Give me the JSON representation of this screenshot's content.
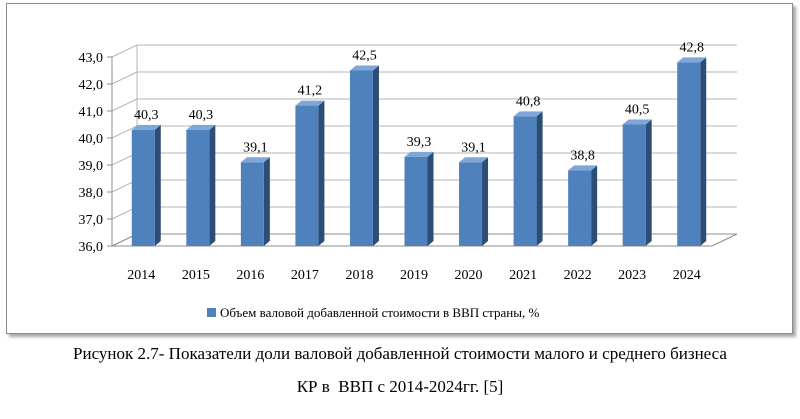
{
  "chart_data": {
    "type": "bar",
    "categories": [
      "2014",
      "2015",
      "2016",
      "2017",
      "2018",
      "2019",
      "2020",
      "2021",
      "2022",
      "2023",
      "2024"
    ],
    "series": [
      {
        "name": "Объем валовой добавленной стоимости в ВВП страны, %",
        "values": [
          40.3,
          40.3,
          39.1,
          41.2,
          42.5,
          39.3,
          39.1,
          40.8,
          38.8,
          40.5,
          42.8
        ],
        "labels": [
          "40,3",
          "40,3",
          "39,1",
          "41,2",
          "42,5",
          "39,3",
          "39,1",
          "40,8",
          "38,8",
          "40,5",
          "42,8"
        ]
      }
    ],
    "ylim": [
      36.0,
      43.0
    ],
    "yticks": [
      36.0,
      37.0,
      38.0,
      39.0,
      40.0,
      41.0,
      42.0,
      43.0
    ],
    "ytick_labels": [
      "36,0",
      "37,0",
      "38,0",
      "39,0",
      "40,0",
      "41,0",
      "42,0",
      "43,0"
    ],
    "grid": true,
    "legend_position": "bottom",
    "style": "3d-clustered-column",
    "colors": {
      "bar_front": "#4f81bd",
      "bar_side": "#2c4d75",
      "bar_top": "#7fa6d8",
      "grid": "#b5b5b5",
      "axis": "#8c8c8c"
    }
  },
  "caption": {
    "line1": "Рисунок 2.7- Показатели доли валовой добавленной стоимости малого и среднего бизнеса",
    "line2": "КР в  ВВП с 2014-2024гг. [5]"
  }
}
